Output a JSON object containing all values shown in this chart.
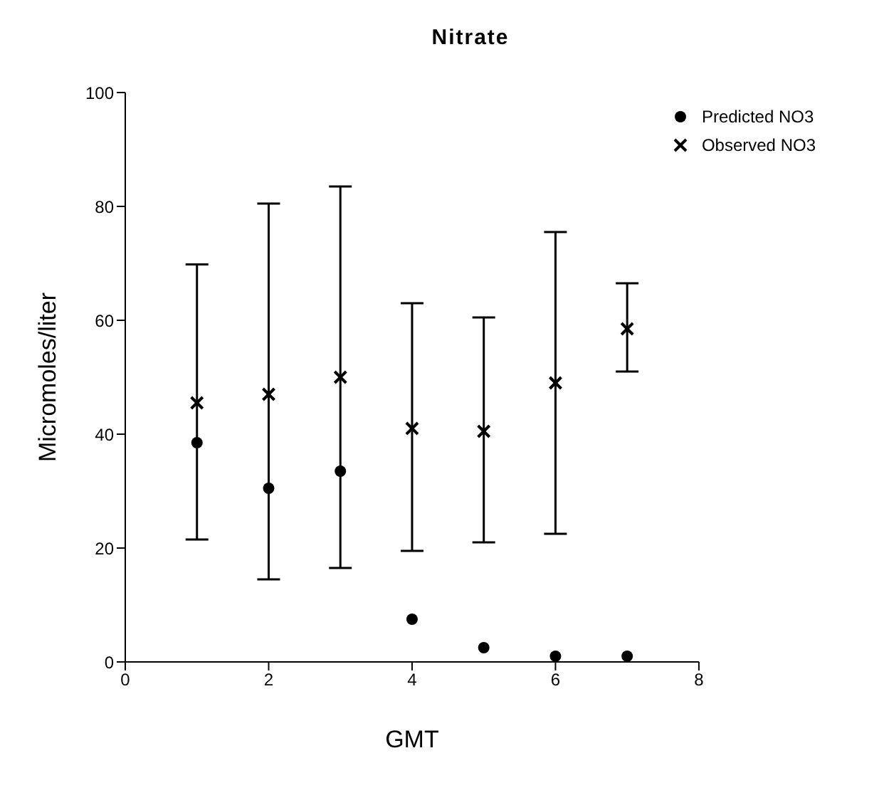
{
  "chart_data": {
    "type": "scatter",
    "title": "Nitrate",
    "xlabel": "GMT",
    "ylabel": "Micromoles/liter",
    "x": [
      1,
      2,
      3,
      4,
      5,
      6,
      7
    ],
    "series": [
      {
        "name": "Predicted NO3",
        "color": "#000000",
        "marker": "circle",
        "values": [
          38.5,
          30.5,
          33.5,
          7.5,
          2.5,
          1,
          1
        ]
      },
      {
        "name": "Observed NO3",
        "color": "#000000",
        "marker": "cross",
        "values": [
          45.5,
          47,
          50,
          41,
          40.5,
          49,
          58.5
        ],
        "errors": [
          [
            21.5,
            69.8
          ],
          [
            14.5,
            80.5
          ],
          [
            16.5,
            83.5
          ],
          [
            19.5,
            63
          ],
          [
            21,
            60.5
          ],
          [
            22.5,
            75.5
          ],
          [
            51,
            66.5
          ]
        ]
      }
    ],
    "xlim": [
      0,
      8
    ],
    "xticks": [
      0,
      2,
      4,
      6,
      8
    ],
    "ylim": [
      0,
      100
    ],
    "yticks": [
      0,
      20,
      40,
      60,
      80,
      100
    ],
    "legend": "top right"
  }
}
